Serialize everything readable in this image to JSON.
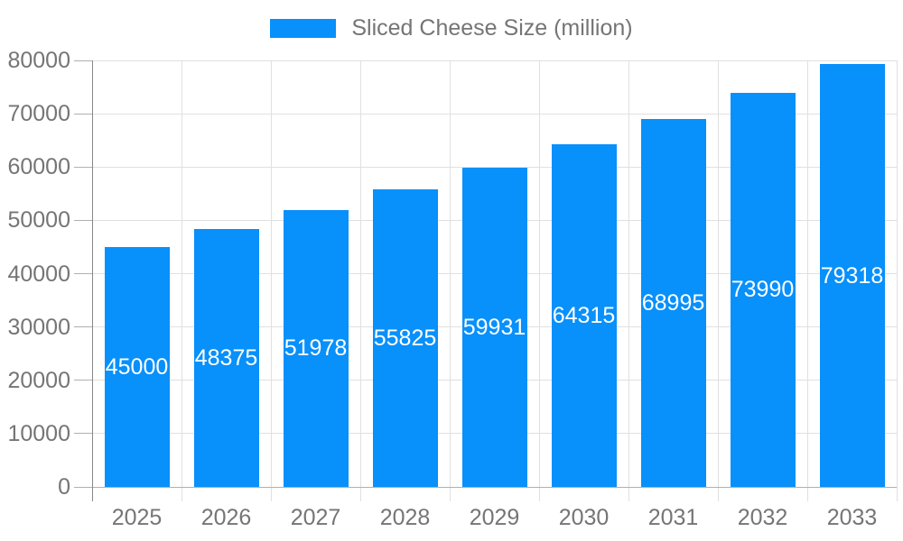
{
  "chart_data": {
    "type": "bar",
    "title": "",
    "legend": {
      "label": "Sliced Cheese Size (million)",
      "position": "top"
    },
    "categories": [
      "2025",
      "2026",
      "2027",
      "2028",
      "2029",
      "2030",
      "2031",
      "2032",
      "2033"
    ],
    "series": [
      {
        "name": "Sliced Cheese Size (million)",
        "values": [
          45000,
          48375,
          51978,
          55825,
          59931,
          64315,
          68995,
          73990,
          79318
        ]
      }
    ],
    "xlabel": "",
    "ylabel": "",
    "ylim": [
      0,
      80000
    ],
    "ytick_step": 10000,
    "ytick_labels": [
      "0",
      "10000",
      "20000",
      "30000",
      "40000",
      "50000",
      "60000",
      "70000",
      "80000"
    ],
    "grid": true,
    "value_label_position": "inside-center",
    "colors": {
      "bar": "#0890FB",
      "bar_label_text": "#FFFFFF",
      "axis_text": "#757575",
      "legend_text": "#757575",
      "gridline": "#E0E0E0",
      "axis_line": "#888888",
      "baseline": "#B0B0B0",
      "y_tick": "#B0B0B0",
      "x_tick": "#E0E0E0",
      "background": "#FFFFFF"
    }
  }
}
